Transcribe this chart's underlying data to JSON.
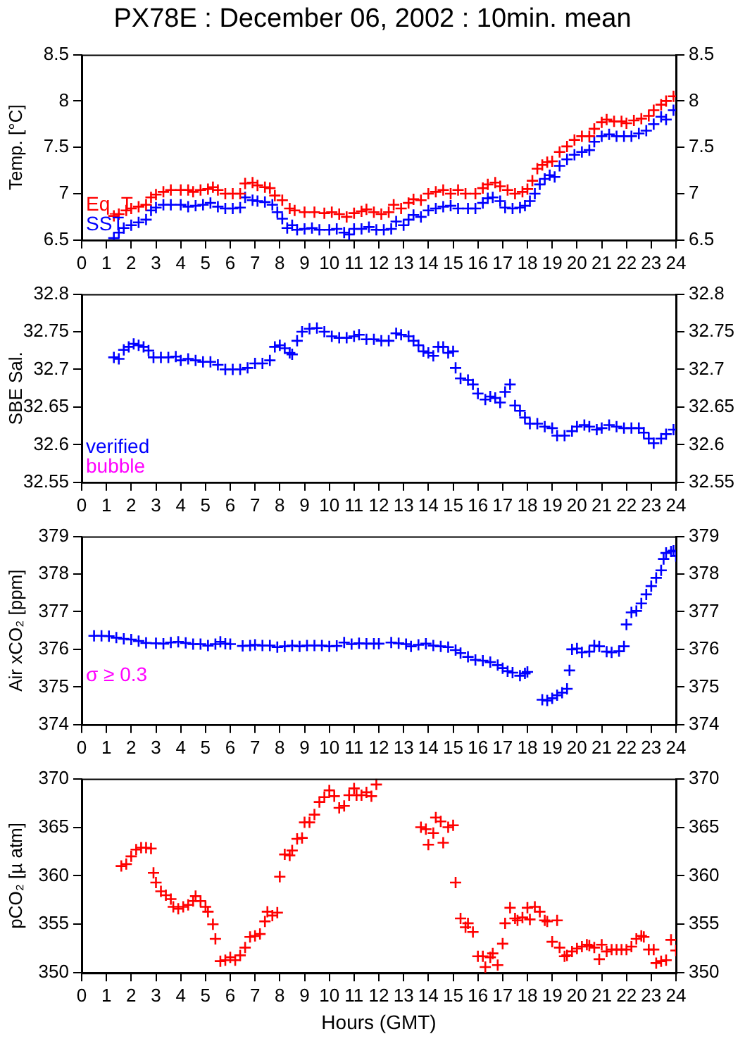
{
  "chart_data": [
    {
      "type": "scatter",
      "title": "PX78E : December 06, 2002 : 10min. mean",
      "ylabel": "Temp. [°C]",
      "marker": "cross",
      "legend": "bottom left",
      "grid": false,
      "xlim": [
        0,
        24
      ],
      "xticks": [
        0,
        1,
        2,
        3,
        4,
        5,
        6,
        7,
        8,
        9,
        10,
        11,
        12,
        13,
        14,
        15,
        16,
        17,
        18,
        19,
        20,
        21,
        22,
        23,
        24
      ],
      "ylim": [
        6.5,
        8.5
      ],
      "yticks": [
        6.5,
        7,
        7.5,
        8,
        8.5
      ],
      "y2lim": [
        6.5,
        8.5
      ],
      "y2ticks": [
        6.5,
        7,
        7.5,
        8,
        8.5
      ],
      "series": [
        {
          "name": "Eq_T",
          "color": "#ff0000",
          "x": [
            1.3,
            1.5,
            1.8,
            2.0,
            2.3,
            2.6,
            2.8,
            3.0,
            3.3,
            3.6,
            4.0,
            4.3,
            4.5,
            4.8,
            5.1,
            5.3,
            5.5,
            5.8,
            6.1,
            6.4,
            6.6,
            6.9,
            7.1,
            7.4,
            7.6,
            7.8,
            8.1,
            8.4,
            8.6,
            9.0,
            9.4,
            9.8,
            10.1,
            10.4,
            10.7,
            11.0,
            11.3,
            11.5,
            11.8,
            12.1,
            12.4,
            12.6,
            12.9,
            13.2,
            13.4,
            13.7,
            14.0,
            14.3,
            14.6,
            14.9,
            15.2,
            15.5,
            15.9,
            16.2,
            16.4,
            16.7,
            16.9,
            17.2,
            17.5,
            17.8,
            18.0,
            18.2,
            18.4,
            18.6,
            18.8,
            19.0,
            19.3,
            19.6,
            19.9,
            20.2,
            20.5,
            20.7,
            21.0,
            21.2,
            21.5,
            21.8,
            22.0,
            22.3,
            22.6,
            22.9,
            23.1,
            23.4,
            23.6,
            23.9
          ],
          "values": [
            6.76,
            6.78,
            6.82,
            6.84,
            6.86,
            6.88,
            6.96,
            6.99,
            7.02,
            7.04,
            7.04,
            7.04,
            7.02,
            7.04,
            7.05,
            7.07,
            7.04,
            7.0,
            7.0,
            7.0,
            7.11,
            7.12,
            7.09,
            7.07,
            7.06,
            6.98,
            6.93,
            6.84,
            6.82,
            6.8,
            6.8,
            6.79,
            6.8,
            6.78,
            6.75,
            6.79,
            6.81,
            6.83,
            6.8,
            6.78,
            6.8,
            6.88,
            6.84,
            6.9,
            6.94,
            6.93,
            7.0,
            7.02,
            7.04,
            7.0,
            7.04,
            7.0,
            7.0,
            7.06,
            7.1,
            7.12,
            7.08,
            7.04,
            7.0,
            7.02,
            7.05,
            7.14,
            7.27,
            7.31,
            7.34,
            7.35,
            7.45,
            7.51,
            7.58,
            7.62,
            7.62,
            7.7,
            7.77,
            7.8,
            7.78,
            7.78,
            7.76,
            7.79,
            7.81,
            7.84,
            7.9,
            7.96,
            8.0,
            8.05
          ]
        },
        {
          "name": "SST",
          "color": "#0000ff",
          "x": [
            1.3,
            1.5,
            1.7,
            2.0,
            2.3,
            2.6,
            2.8,
            3.0,
            3.3,
            3.6,
            4.0,
            4.3,
            4.6,
            4.9,
            5.2,
            5.5,
            5.8,
            6.1,
            6.4,
            6.6,
            6.9,
            7.1,
            7.4,
            7.7,
            7.9,
            8.1,
            8.3,
            8.5,
            8.7,
            9.0,
            9.3,
            9.6,
            10.0,
            10.3,
            10.6,
            10.8,
            11.0,
            11.3,
            11.6,
            11.9,
            12.2,
            12.5,
            12.7,
            13.0,
            13.2,
            13.4,
            13.7,
            14.0,
            14.3,
            14.6,
            14.9,
            15.2,
            15.6,
            15.9,
            16.2,
            16.4,
            16.6,
            16.9,
            17.1,
            17.4,
            17.7,
            17.9,
            18.1,
            18.3,
            18.5,
            18.7,
            18.9,
            19.1,
            19.3,
            19.6,
            19.9,
            20.2,
            20.5,
            20.7,
            21.0,
            21.3,
            21.6,
            21.9,
            22.2,
            22.5,
            22.8,
            23.1,
            23.4,
            23.6,
            23.9
          ],
          "values": [
            6.52,
            6.58,
            6.63,
            6.66,
            6.69,
            6.72,
            6.82,
            6.85,
            6.88,
            6.88,
            6.88,
            6.86,
            6.87,
            6.88,
            6.9,
            6.86,
            6.84,
            6.84,
            6.85,
            6.96,
            6.93,
            6.92,
            6.91,
            6.88,
            6.8,
            6.73,
            6.63,
            6.66,
            6.61,
            6.62,
            6.63,
            6.61,
            6.61,
            6.62,
            6.58,
            6.56,
            6.62,
            6.62,
            6.64,
            6.61,
            6.61,
            6.62,
            6.7,
            6.66,
            6.72,
            6.77,
            6.75,
            6.82,
            6.84,
            6.86,
            6.87,
            6.84,
            6.84,
            6.84,
            6.9,
            6.95,
            6.96,
            6.92,
            6.85,
            6.84,
            6.85,
            6.87,
            6.92,
            7.0,
            7.1,
            7.16,
            7.2,
            7.18,
            7.3,
            7.37,
            7.42,
            7.45,
            7.47,
            7.56,
            7.62,
            7.64,
            7.62,
            7.62,
            7.62,
            7.65,
            7.68,
            7.75,
            7.83,
            7.8,
            7.9
          ]
        }
      ]
    },
    {
      "type": "scatter",
      "ylabel": "SBE Sal.",
      "marker": "cross",
      "legend": "bottom left",
      "grid": false,
      "annotations": [
        "bubble"
      ],
      "xlim": [
        0,
        24
      ],
      "xticks": [
        0,
        1,
        2,
        3,
        4,
        5,
        6,
        7,
        8,
        9,
        10,
        11,
        12,
        13,
        14,
        15,
        16,
        17,
        18,
        19,
        20,
        21,
        22,
        23,
        24
      ],
      "ylim": [
        32.55,
        32.8
      ],
      "yticks": [
        32.55,
        32.6,
        32.65,
        32.7,
        32.75,
        32.8
      ],
      "y2lim": [
        32.55,
        32.8
      ],
      "y2ticks": [
        32.55,
        32.6,
        32.65,
        32.7,
        32.75,
        32.8
      ],
      "series": [
        {
          "name": "verified",
          "color": "#0000ff",
          "x": [
            1.3,
            1.5,
            1.7,
            1.9,
            2.1,
            2.3,
            2.5,
            2.7,
            2.9,
            3.2,
            3.5,
            3.8,
            4.0,
            4.3,
            4.6,
            4.9,
            5.2,
            5.5,
            5.8,
            6.1,
            6.4,
            6.7,
            7.0,
            7.3,
            7.6,
            7.8,
            8.0,
            8.2,
            8.4,
            8.5,
            8.7,
            8.9,
            9.2,
            9.5,
            9.8,
            10.1,
            10.4,
            10.7,
            11.0,
            11.2,
            11.5,
            11.8,
            12.1,
            12.4,
            12.7,
            12.9,
            13.2,
            13.4,
            13.6,
            13.8,
            14.0,
            14.2,
            14.4,
            14.6,
            14.8,
            15.0,
            15.1,
            15.3,
            15.6,
            15.8,
            16.0,
            16.3,
            16.5,
            16.7,
            16.9,
            17.1,
            17.3,
            17.5,
            17.7,
            17.9,
            18.1,
            18.4,
            18.7,
            19.0,
            19.2,
            19.5,
            19.8,
            20.0,
            20.3,
            20.5,
            20.8,
            21.0,
            21.3,
            21.6,
            21.9,
            22.2,
            22.5,
            22.7,
            22.9,
            23.1,
            23.4,
            23.6,
            23.9
          ],
          "values": [
            32.716,
            32.714,
            32.726,
            32.73,
            32.734,
            32.732,
            32.73,
            32.725,
            32.716,
            32.716,
            32.716,
            32.717,
            32.712,
            32.714,
            32.712,
            32.71,
            32.71,
            32.706,
            32.7,
            32.7,
            32.7,
            32.702,
            32.708,
            32.708,
            32.712,
            32.73,
            32.732,
            32.728,
            32.722,
            32.72,
            32.738,
            32.75,
            32.754,
            32.755,
            32.75,
            32.744,
            32.742,
            32.742,
            32.744,
            32.746,
            32.74,
            32.74,
            32.738,
            32.738,
            32.748,
            32.746,
            32.744,
            32.738,
            32.732,
            32.724,
            32.722,
            32.718,
            32.73,
            32.73,
            32.722,
            32.724,
            32.702,
            32.688,
            32.686,
            32.68,
            32.668,
            32.66,
            32.664,
            32.662,
            32.656,
            32.67,
            32.68,
            32.652,
            32.645,
            32.636,
            32.628,
            32.628,
            32.624,
            32.622,
            32.612,
            32.612,
            32.618,
            32.624,
            32.626,
            32.624,
            32.62,
            32.622,
            32.626,
            32.624,
            32.622,
            32.622,
            32.622,
            32.616,
            32.608,
            32.602,
            32.608,
            32.614,
            32.62
          ]
        }
      ]
    },
    {
      "type": "scatter",
      "ylabel": "Air xCO₂ [ppm]",
      "marker": "cross",
      "grid": false,
      "annotations": [
        "σ ≥ 0.3"
      ],
      "xlim": [
        0,
        24
      ],
      "xticks": [
        0,
        1,
        2,
        3,
        4,
        5,
        6,
        7,
        8,
        9,
        10,
        11,
        12,
        13,
        14,
        15,
        16,
        17,
        18,
        19,
        20,
        21,
        22,
        23,
        24
      ],
      "ylim": [
        374,
        379
      ],
      "yticks": [
        374,
        375,
        376,
        377,
        378,
        379
      ],
      "y2lim": [
        374,
        379
      ],
      "y2ticks": [
        374,
        375,
        376,
        377,
        378,
        379
      ],
      "series": [
        {
          "color": "#0000ff",
          "x": [
            0.5,
            0.8,
            1.1,
            1.4,
            1.7,
            2.0,
            2.3,
            2.6,
            3.0,
            3.3,
            3.6,
            3.9,
            4.2,
            4.5,
            4.8,
            5.1,
            5.4,
            5.6,
            5.8,
            6.0,
            6.5,
            6.8,
            7.0,
            7.3,
            7.6,
            7.9,
            8.2,
            8.5,
            8.8,
            9.1,
            9.4,
            9.7,
            10.0,
            10.3,
            10.6,
            10.9,
            11.2,
            11.5,
            11.8,
            12.0,
            12.5,
            12.8,
            13.1,
            13.3,
            13.6,
            13.9,
            14.2,
            14.5,
            14.8,
            15.1,
            15.3,
            15.6,
            15.9,
            16.2,
            16.5,
            16.8,
            17.0,
            17.2,
            17.4,
            17.7,
            17.9,
            18.0,
            18.6,
            18.8,
            19.0,
            19.2,
            19.4,
            19.6,
            19.7,
            19.8,
            20.0,
            20.2,
            20.5,
            20.7,
            20.9,
            21.2,
            21.4,
            21.7,
            21.9,
            22.0,
            22.2,
            22.4,
            22.6,
            22.8,
            23.0,
            23.2,
            23.4,
            23.5,
            23.6,
            23.8,
            23.9,
            24.0
          ],
          "values": [
            376.36,
            376.36,
            376.35,
            376.31,
            376.28,
            376.26,
            376.22,
            376.17,
            376.16,
            376.15,
            376.18,
            376.2,
            376.17,
            376.14,
            376.14,
            376.1,
            376.14,
            376.2,
            376.15,
            376.14,
            376.09,
            376.1,
            376.12,
            376.1,
            376.1,
            376.06,
            376.08,
            376.1,
            376.08,
            376.1,
            376.1,
            376.1,
            376.08,
            376.09,
            376.18,
            376.14,
            376.16,
            376.15,
            376.15,
            376.15,
            376.18,
            376.16,
            376.14,
            376.08,
            376.12,
            376.15,
            376.1,
            376.08,
            376.06,
            375.98,
            375.9,
            375.8,
            375.72,
            375.7,
            375.66,
            375.58,
            375.5,
            375.42,
            375.38,
            375.3,
            375.36,
            375.4,
            374.66,
            374.64,
            374.7,
            374.78,
            374.85,
            374.95,
            375.44,
            376.0,
            376.02,
            375.92,
            375.94,
            376.1,
            376.08,
            375.94,
            375.92,
            375.95,
            376.08,
            376.66,
            376.98,
            377.02,
            377.22,
            377.46,
            377.68,
            377.9,
            378.1,
            378.4,
            378.56,
            378.6,
            378.62,
            378.48
          ]
        }
      ]
    },
    {
      "type": "scatter",
      "ylabel": "pCO₂ [µ atm]",
      "xlabel": "Hours (GMT)",
      "marker": "cross",
      "grid": false,
      "xlim": [
        0,
        24
      ],
      "xticks": [
        0,
        1,
        2,
        3,
        4,
        5,
        6,
        7,
        8,
        9,
        10,
        11,
        12,
        13,
        14,
        15,
        16,
        17,
        18,
        19,
        20,
        21,
        22,
        23,
        24
      ],
      "ylim": [
        350,
        370
      ],
      "yticks": [
        350,
        355,
        360,
        365,
        370
      ],
      "y2lim": [
        350,
        370
      ],
      "y2ticks": [
        350,
        355,
        360,
        365,
        370
      ],
      "series": [
        {
          "color": "#ff0000",
          "x": [
            1.6,
            1.8,
            2.0,
            2.2,
            2.4,
            2.6,
            2.8,
            2.9,
            3.0,
            3.2,
            3.4,
            3.6,
            3.7,
            3.9,
            4.1,
            4.3,
            4.5,
            4.6,
            4.8,
            5.0,
            5.1,
            5.3,
            5.4,
            5.6,
            5.8,
            6.0,
            6.2,
            6.4,
            6.6,
            6.8,
            7.0,
            7.2,
            7.4,
            7.5,
            7.7,
            7.9,
            8.0,
            8.2,
            8.4,
            8.5,
            8.7,
            8.9,
            9.0,
            9.2,
            9.4,
            9.6,
            9.8,
            10.0,
            10.2,
            10.4,
            10.6,
            10.8,
            11.0,
            11.1,
            11.3,
            11.5,
            11.7,
            11.9,
            13.7,
            13.9,
            14.0,
            14.2,
            14.3,
            14.5,
            14.6,
            14.8,
            15.0,
            15.1,
            15.3,
            15.5,
            15.6,
            15.8,
            16.0,
            16.2,
            16.3,
            16.5,
            16.6,
            16.8,
            17.0,
            17.1,
            17.3,
            17.5,
            17.6,
            17.8,
            18.0,
            18.1,
            18.3,
            18.5,
            18.7,
            18.8,
            19.0,
            19.2,
            19.3,
            19.5,
            19.6,
            19.8,
            20.0,
            20.2,
            20.4,
            20.5,
            20.7,
            20.9,
            21.0,
            21.2,
            21.4,
            21.6,
            21.8,
            22.0,
            22.2,
            22.4,
            22.6,
            22.7,
            22.9,
            23.1,
            23.2,
            23.4,
            23.6,
            23.8,
            24.0
          ],
          "values": [
            361.0,
            361.2,
            362.0,
            362.7,
            362.9,
            362.9,
            362.8,
            360.3,
            359.3,
            358.4,
            358.0,
            357.6,
            356.8,
            356.6,
            356.8,
            357.0,
            357.4,
            357.9,
            357.4,
            356.8,
            356.3,
            355.0,
            353.5,
            351.2,
            351.3,
            351.6,
            351.3,
            351.8,
            352.6,
            353.7,
            353.8,
            354.0,
            355.3,
            356.3,
            355.9,
            356.2,
            359.9,
            362.2,
            362.1,
            362.6,
            363.8,
            363.9,
            365.5,
            365.5,
            366.3,
            367.6,
            368.1,
            368.8,
            368.2,
            367.0,
            367.2,
            368.3,
            369.0,
            368.3,
            368.3,
            368.6,
            368.2,
            369.4,
            365.0,
            364.8,
            363.2,
            364.4,
            366.0,
            365.6,
            363.4,
            365.0,
            365.2,
            359.3,
            355.6,
            354.7,
            355.1,
            354.2,
            351.7,
            351.7,
            350.6,
            351.6,
            352.0,
            350.8,
            353.0,
            355.1,
            356.7,
            355.6,
            355.4,
            355.7,
            356.7,
            355.5,
            356.8,
            356.3,
            355.4,
            355.3,
            353.2,
            355.4,
            352.6,
            351.7,
            351.8,
            352.2,
            352.5,
            352.7,
            352.9,
            352.8,
            352.6,
            351.4,
            352.9,
            352.2,
            352.4,
            352.4,
            352.4,
            352.4,
            352.7,
            353.5,
            353.8,
            353.7,
            352.4,
            352.4,
            351.0,
            351.2,
            351.3,
            353.4,
            352.3
          ]
        }
      ]
    }
  ]
}
